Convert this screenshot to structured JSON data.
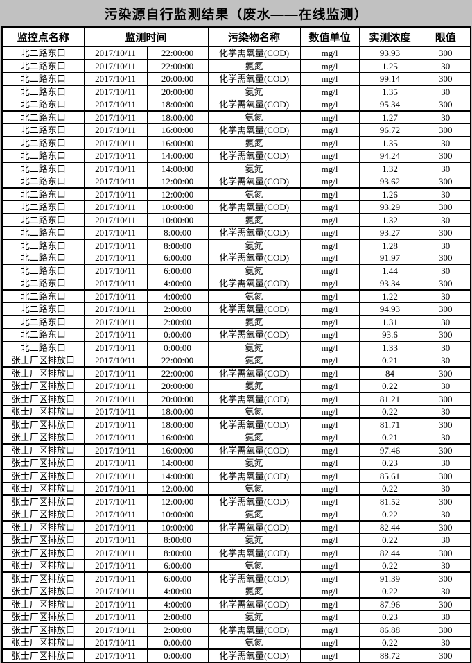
{
  "page": {
    "title": "污染源自行监测结果（废水——在线监测）",
    "background_color": "#c1c1c1",
    "table_background": "#ffffff",
    "border_color": "#000000"
  },
  "table": {
    "headers": {
      "site": "监控点名称",
      "time": "监测时间",
      "pollutant": "污染物名称",
      "unit": "数值单位",
      "concentration": "实测浓度",
      "limit": "限值"
    },
    "rows": [
      [
        "北二路东口",
        "2017/10/11",
        "22:00:00",
        "化学需氧量(COD)",
        "mg/l",
        "93.93",
        "300"
      ],
      [
        "北二路东口",
        "2017/10/11",
        "22:00:00",
        "氨氮",
        "mg/l",
        "1.25",
        "30"
      ],
      [
        "北二路东口",
        "2017/10/11",
        "20:00:00",
        "化学需氧量(COD)",
        "mg/l",
        "99.14",
        "300"
      ],
      [
        "北二路东口",
        "2017/10/11",
        "20:00:00",
        "氨氮",
        "mg/l",
        "1.35",
        "30"
      ],
      [
        "北二路东口",
        "2017/10/11",
        "18:00:00",
        "化学需氧量(COD)",
        "mg/l",
        "95.34",
        "300"
      ],
      [
        "北二路东口",
        "2017/10/11",
        "18:00:00",
        "氨氮",
        "mg/l",
        "1.27",
        "30"
      ],
      [
        "北二路东口",
        "2017/10/11",
        "16:00:00",
        "化学需氧量(COD)",
        "mg/l",
        "96.72",
        "300"
      ],
      [
        "北二路东口",
        "2017/10/11",
        "16:00:00",
        "氨氮",
        "mg/l",
        "1.35",
        "30"
      ],
      [
        "北二路东口",
        "2017/10/11",
        "14:00:00",
        "化学需氧量(COD)",
        "mg/l",
        "94.24",
        "300"
      ],
      [
        "北二路东口",
        "2017/10/11",
        "14:00:00",
        "氨氮",
        "mg/l",
        "1.32",
        "30"
      ],
      [
        "北二路东口",
        "2017/10/11",
        "12:00:00",
        "化学需氧量(COD)",
        "mg/l",
        "93.62",
        "300"
      ],
      [
        "北二路东口",
        "2017/10/11",
        "12:00:00",
        "氨氮",
        "mg/l",
        "1.26",
        "30"
      ],
      [
        "北二路东口",
        "2017/10/11",
        "10:00:00",
        "化学需氧量(COD)",
        "mg/l",
        "93.29",
        "300"
      ],
      [
        "北二路东口",
        "2017/10/11",
        "10:00:00",
        "氨氮",
        "mg/l",
        "1.32",
        "30"
      ],
      [
        "北二路东口",
        "2017/10/11",
        "8:00:00",
        "化学需氧量(COD)",
        "mg/l",
        "93.27",
        "300"
      ],
      [
        "北二路东口",
        "2017/10/11",
        "8:00:00",
        "氨氮",
        "mg/l",
        "1.28",
        "30"
      ],
      [
        "北二路东口",
        "2017/10/11",
        "6:00:00",
        "化学需氧量(COD)",
        "mg/l",
        "91.97",
        "300"
      ],
      [
        "北二路东口",
        "2017/10/11",
        "6:00:00",
        "氨氮",
        "mg/l",
        "1.44",
        "30"
      ],
      [
        "北二路东口",
        "2017/10/11",
        "4:00:00",
        "化学需氧量(COD)",
        "mg/l",
        "93.34",
        "300"
      ],
      [
        "北二路东口",
        "2017/10/11",
        "4:00:00",
        "氨氮",
        "mg/l",
        "1.22",
        "30"
      ],
      [
        "北二路东口",
        "2017/10/11",
        "2:00:00",
        "化学需氧量(COD)",
        "mg/l",
        "94.93",
        "300"
      ],
      [
        "北二路东口",
        "2017/10/11",
        "2:00:00",
        "氨氮",
        "mg/l",
        "1.31",
        "30"
      ],
      [
        "北二路东口",
        "2017/10/11",
        "0:00:00",
        "化学需氧量(COD)",
        "mg/l",
        "93.6",
        "300"
      ],
      [
        "北二路东口",
        "2017/10/11",
        "0:00:00",
        "氨氮",
        "mg/l",
        "1.33",
        "30"
      ],
      [
        "张士厂区排放口",
        "2017/10/11",
        "22:00:00",
        "氨氮",
        "mg/l",
        "0.21",
        "30"
      ],
      [
        "张士厂区排放口",
        "2017/10/11",
        "22:00:00",
        "化学需氧量(COD)",
        "mg/l",
        "84",
        "300"
      ],
      [
        "张士厂区排放口",
        "2017/10/11",
        "20:00:00",
        "氨氮",
        "mg/l",
        "0.22",
        "30"
      ],
      [
        "张士厂区排放口",
        "2017/10/11",
        "20:00:00",
        "化学需氧量(COD)",
        "mg/l",
        "81.21",
        "300"
      ],
      [
        "张士厂区排放口",
        "2017/10/11",
        "18:00:00",
        "氨氮",
        "mg/l",
        "0.22",
        "30"
      ],
      [
        "张士厂区排放口",
        "2017/10/11",
        "18:00:00",
        "化学需氧量(COD)",
        "mg/l",
        "81.71",
        "300"
      ],
      [
        "张士厂区排放口",
        "2017/10/11",
        "16:00:00",
        "氨氮",
        "mg/l",
        "0.21",
        "30"
      ],
      [
        "张士厂区排放口",
        "2017/10/11",
        "16:00:00",
        "化学需氧量(COD)",
        "mg/l",
        "97.46",
        "300"
      ],
      [
        "张士厂区排放口",
        "2017/10/11",
        "14:00:00",
        "氨氮",
        "mg/l",
        "0.23",
        "30"
      ],
      [
        "张士厂区排放口",
        "2017/10/11",
        "14:00:00",
        "化学需氧量(COD)",
        "mg/l",
        "85.61",
        "300"
      ],
      [
        "张士厂区排放口",
        "2017/10/11",
        "12:00:00",
        "氨氮",
        "mg/l",
        "0.22",
        "30"
      ],
      [
        "张士厂区排放口",
        "2017/10/11",
        "12:00:00",
        "化学需氧量(COD)",
        "mg/l",
        "81.52",
        "300"
      ],
      [
        "张士厂区排放口",
        "2017/10/11",
        "10:00:00",
        "氨氮",
        "mg/l",
        "0.22",
        "30"
      ],
      [
        "张士厂区排放口",
        "2017/10/11",
        "10:00:00",
        "化学需氧量(COD)",
        "mg/l",
        "82.44",
        "300"
      ],
      [
        "张士厂区排放口",
        "2017/10/11",
        "8:00:00",
        "氨氮",
        "mg/l",
        "0.22",
        "30"
      ],
      [
        "张士厂区排放口",
        "2017/10/11",
        "8:00:00",
        "化学需氧量(COD)",
        "mg/l",
        "82.44",
        "300"
      ],
      [
        "张士厂区排放口",
        "2017/10/11",
        "6:00:00",
        "氨氮",
        "mg/l",
        "0.22",
        "30"
      ],
      [
        "张士厂区排放口",
        "2017/10/11",
        "6:00:00",
        "化学需氧量(COD)",
        "mg/l",
        "91.39",
        "300"
      ],
      [
        "张士厂区排放口",
        "2017/10/11",
        "4:00:00",
        "氨氮",
        "mg/l",
        "0.22",
        "30"
      ],
      [
        "张士厂区排放口",
        "2017/10/11",
        "4:00:00",
        "化学需氧量(COD)",
        "mg/l",
        "87.96",
        "300"
      ],
      [
        "张士厂区排放口",
        "2017/10/11",
        "2:00:00",
        "氨氮",
        "mg/l",
        "0.23",
        "30"
      ],
      [
        "张士厂区排放口",
        "2017/10/11",
        "2:00:00",
        "化学需氧量(COD)",
        "mg/l",
        "86.88",
        "300"
      ],
      [
        "张士厂区排放口",
        "2017/10/11",
        "0:00:00",
        "氨氮",
        "mg/l",
        "0.22",
        "30"
      ],
      [
        "张士厂区排放口",
        "2017/10/11",
        "0:00:00",
        "化学需氧量(COD)",
        "mg/l",
        "88.72",
        "300"
      ]
    ]
  }
}
